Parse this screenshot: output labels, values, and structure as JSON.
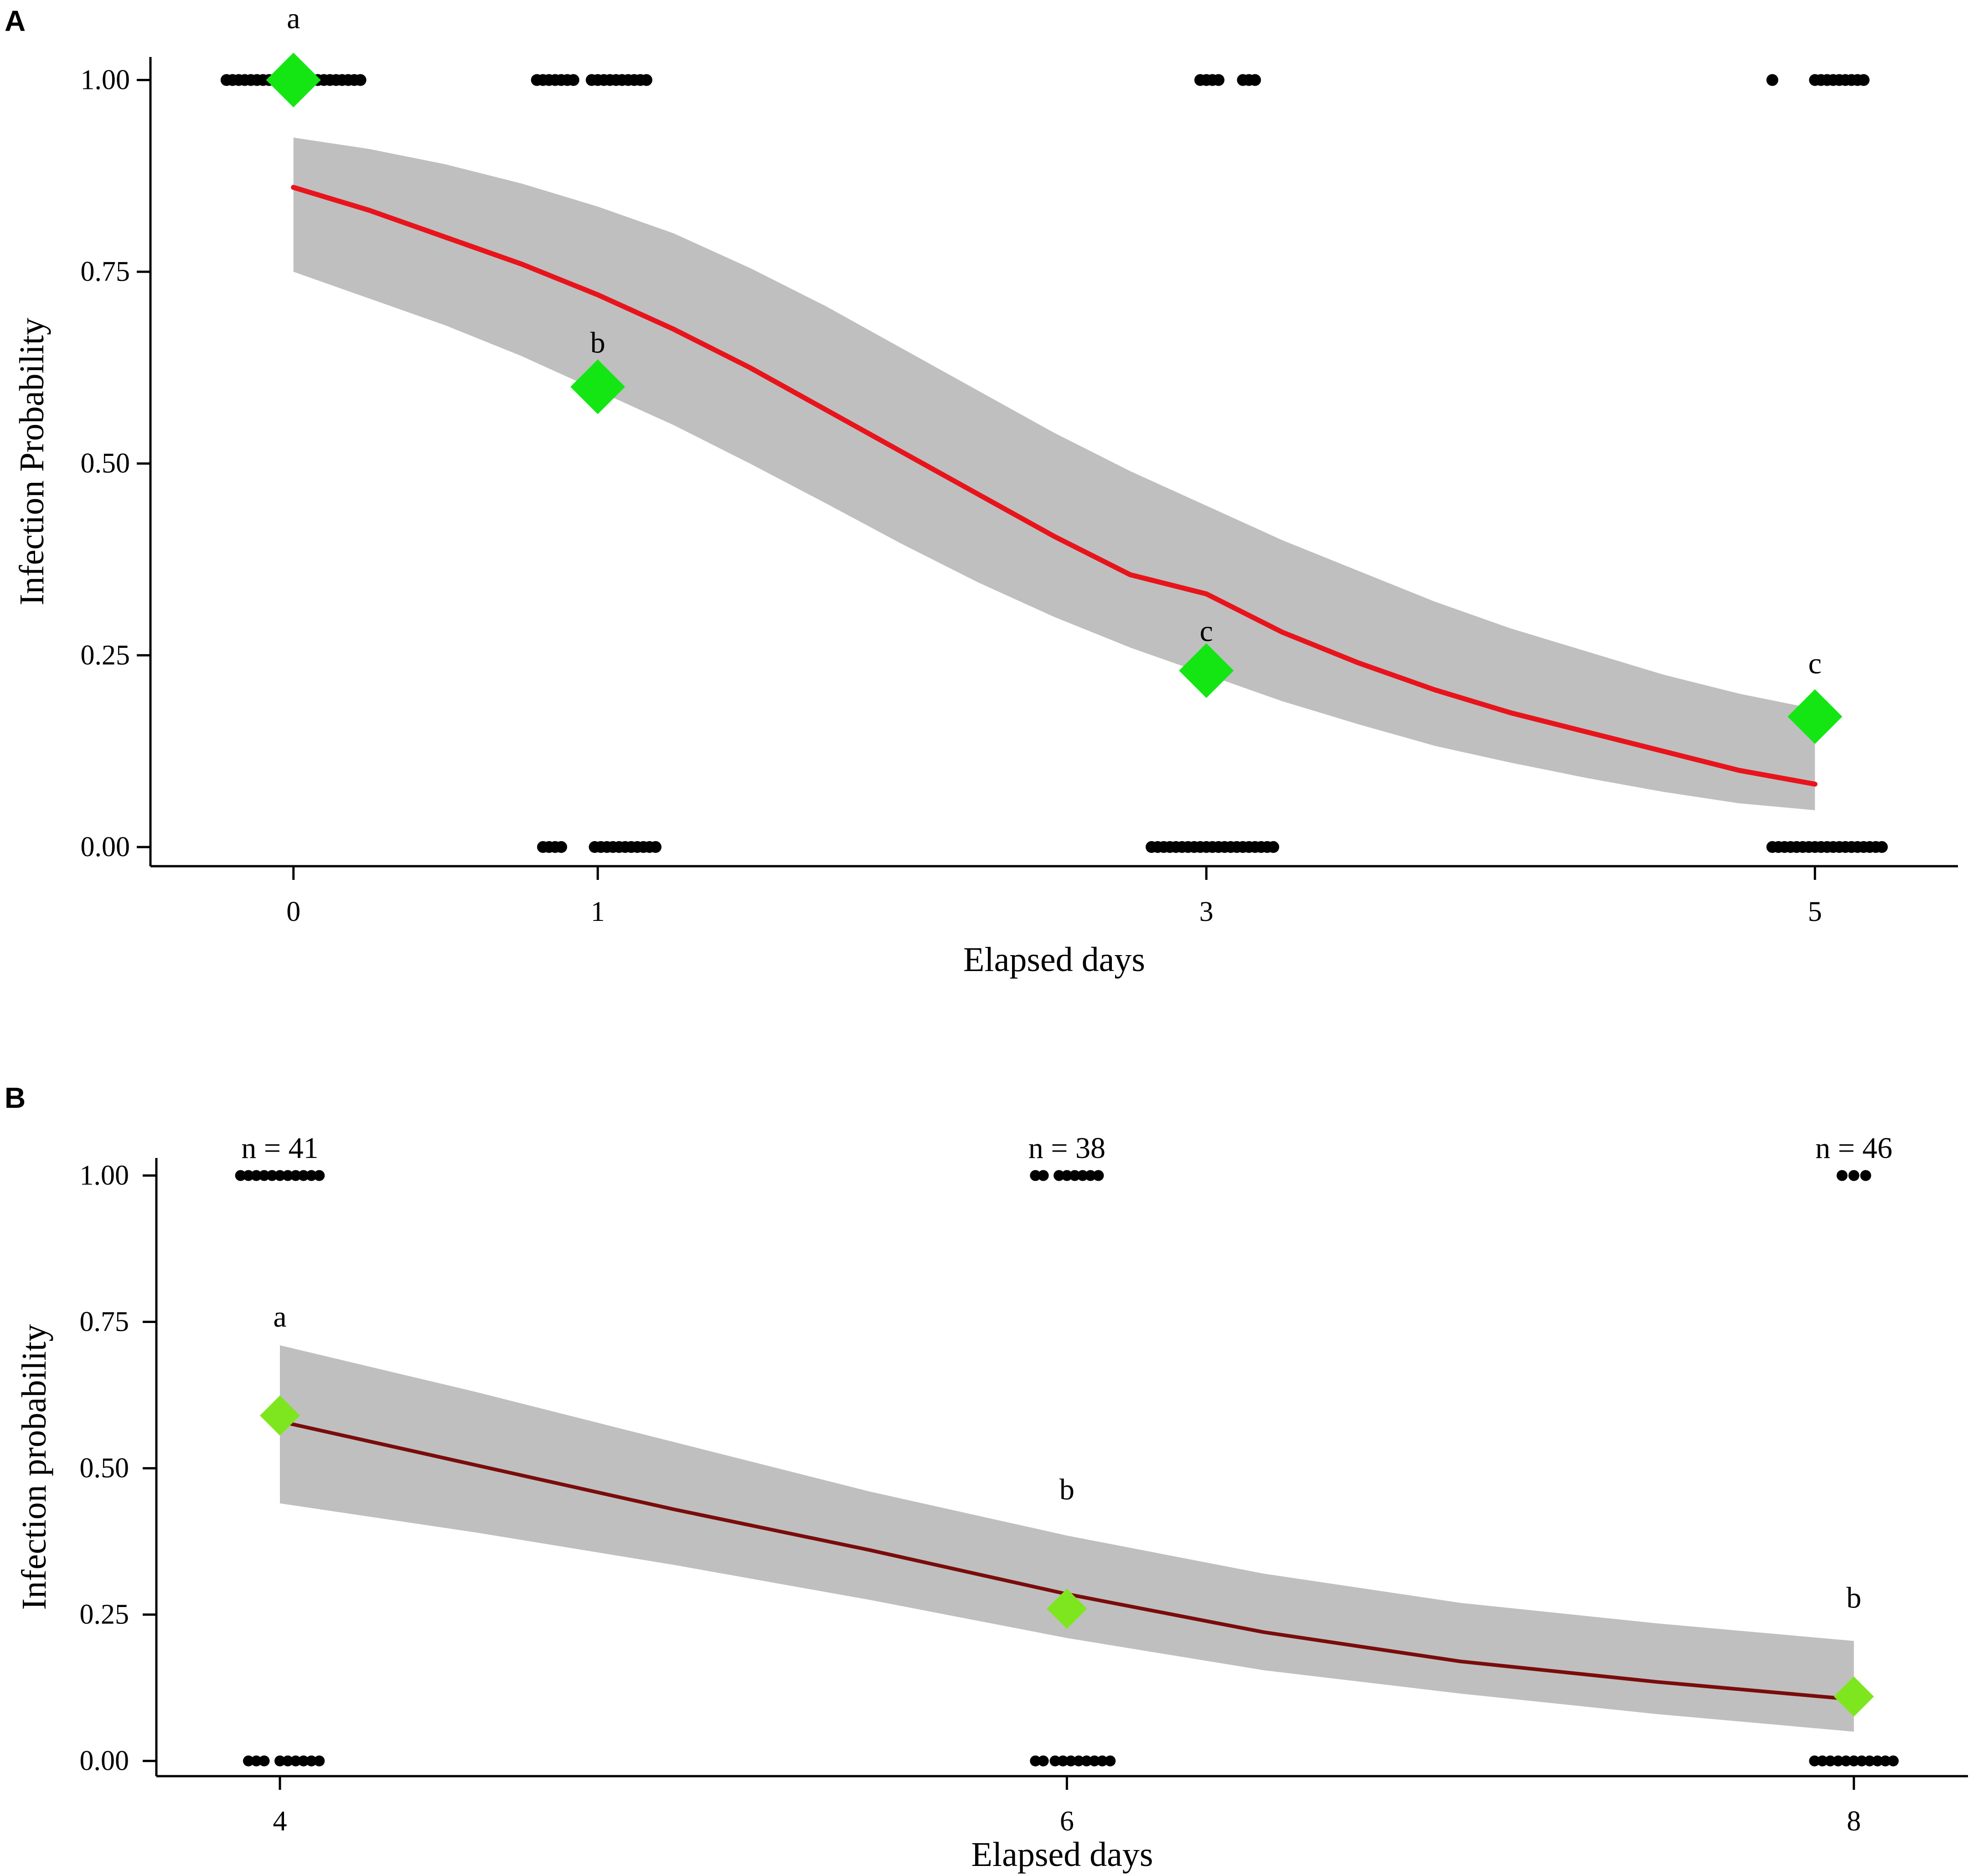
{
  "chart_data": [
    {
      "panel": "A",
      "type": "line",
      "title": "",
      "xlabel": "Elapsed days",
      "ylabel": "Infection Probability",
      "xlim": [
        -0.47,
        5.47
      ],
      "ylim": [
        -0.025,
        1.03
      ],
      "xticks": [
        0,
        1,
        3,
        5
      ],
      "xtick_labels": [
        "0",
        "1",
        "3",
        "5"
      ],
      "yticks": [
        0,
        0.25,
        0.5,
        0.75,
        1
      ],
      "ytick_labels": [
        "0.00",
        "0.25",
        "0.50",
        "0.75",
        "1.00"
      ],
      "grid": false,
      "fit_color": "#e8141c",
      "band_color": "#bfbfbf",
      "point_color": "#14e614",
      "fit": {
        "name": "Fitted infection probability",
        "x": [
          0,
          0.25,
          0.5,
          0.75,
          1,
          1.25,
          1.5,
          1.75,
          2,
          2.25,
          2.5,
          2.75,
          3,
          3.25,
          3.5,
          3.75,
          4,
          4.25,
          4.5,
          4.75,
          5
        ],
        "y": [
          0.86,
          0.83,
          0.795,
          0.76,
          0.72,
          0.675,
          0.625,
          0.57,
          0.515,
          0.46,
          0.405,
          0.355,
          0.33,
          0.28,
          0.24,
          0.205,
          0.175,
          0.15,
          0.125,
          0.1,
          0.082
        ],
        "lower": [
          0.75,
          0.715,
          0.68,
          0.64,
          0.595,
          0.55,
          0.5,
          0.448,
          0.395,
          0.345,
          0.3,
          0.26,
          0.225,
          0.19,
          0.16,
          0.132,
          0.11,
          0.09,
          0.072,
          0.057,
          0.048
        ],
        "upper": [
          0.925,
          0.91,
          0.89,
          0.865,
          0.835,
          0.8,
          0.755,
          0.705,
          0.65,
          0.595,
          0.54,
          0.49,
          0.445,
          0.4,
          0.36,
          0.32,
          0.285,
          0.255,
          0.225,
          0.2,
          0.18
        ]
      },
      "observed": {
        "name": "Observed proportion infected",
        "x": [
          0,
          1,
          3,
          5
        ],
        "y": [
          1.0,
          0.6,
          0.23,
          0.17
        ],
        "letters": [
          "a",
          "b",
          "c",
          "c"
        ]
      },
      "raw_points": [
        {
          "y": 1,
          "x": [
            -0.22,
            -0.2,
            -0.18,
            -0.16,
            -0.14,
            -0.12,
            -0.1,
            -0.08,
            -0.06,
            0.06,
            0.08,
            0.1,
            0.12,
            0.14,
            0.16,
            0.18,
            0.2,
            0.22
          ]
        },
        {
          "y": 1,
          "x": [
            0.8,
            0.82,
            0.84,
            0.86,
            0.88,
            0.9,
            0.92,
            0.98,
            1.0,
            1.02,
            1.04,
            1.06,
            1.08,
            1.1,
            1.12,
            1.14,
            1.16
          ]
        },
        {
          "y": 1,
          "x": [
            2.98,
            3.0,
            3.02,
            3.04,
            3.12,
            3.14,
            3.16
          ]
        },
        {
          "y": 1,
          "x": [
            4.86,
            5.0,
            5.02,
            5.04,
            5.06,
            5.08,
            5.1,
            5.12,
            5.14,
            5.16
          ]
        },
        {
          "y": 0,
          "x": [
            0.82,
            0.84,
            0.86,
            0.88,
            0.99,
            1.01,
            1.03,
            1.05,
            1.07,
            1.09,
            1.11,
            1.13,
            1.15,
            1.17,
            1.19
          ]
        },
        {
          "y": 0,
          "x": [
            2.82,
            2.84,
            2.86,
            2.88,
            2.9,
            2.92,
            2.94,
            2.96,
            2.98,
            3.0,
            3.02,
            3.04,
            3.06,
            3.08,
            3.1,
            3.12,
            3.14,
            3.16,
            3.18,
            3.2,
            3.22
          ]
        },
        {
          "y": 0,
          "x": [
            4.86,
            4.88,
            4.9,
            4.92,
            4.94,
            4.96,
            4.98,
            5.0,
            5.02,
            5.04,
            5.06,
            5.08,
            5.1,
            5.12,
            5.14,
            5.16,
            5.18,
            5.2,
            5.22
          ]
        }
      ]
    },
    {
      "panel": "B",
      "type": "line",
      "title": "",
      "xlabel": "Elapsed days",
      "ylabel": "Infection probability",
      "xlim": [
        3.686,
        8.29
      ],
      "ylim": [
        -0.026,
        1.03
      ],
      "xticks": [
        4,
        6,
        8
      ],
      "xtick_labels": [
        "4",
        "6",
        "8"
      ],
      "yticks": [
        0,
        0.25,
        0.5,
        0.75,
        1
      ],
      "ytick_labels": [
        "0.00",
        "0.25",
        "0.50",
        "0.75",
        "1.00"
      ],
      "grid": false,
      "fit_color": "#7a0c0c",
      "band_color": "#bfbfbf",
      "point_color": "#7ee61e",
      "fit": {
        "name": "Fitted infection probability",
        "x": [
          4,
          4.5,
          5,
          5.5,
          6,
          6.5,
          7,
          7.5,
          8
        ],
        "y": [
          0.58,
          0.505,
          0.43,
          0.36,
          0.285,
          0.22,
          0.17,
          0.135,
          0.105
        ],
        "lower": [
          0.44,
          0.39,
          0.335,
          0.275,
          0.21,
          0.155,
          0.115,
          0.08,
          0.05
        ],
        "upper": [
          0.71,
          0.63,
          0.545,
          0.46,
          0.385,
          0.32,
          0.27,
          0.235,
          0.205
        ]
      },
      "observed": {
        "name": "Observed proportion infected",
        "x": [
          4,
          6,
          8
        ],
        "y": [
          0.59,
          0.26,
          0.11
        ],
        "letters": [
          "a",
          "b",
          "b"
        ]
      },
      "sample_sizes": [
        "n = 41",
        "n = 38",
        "n = 46"
      ],
      "raw_points": [
        {
          "y": 1,
          "x": [
            3.9,
            3.92,
            3.94,
            3.96,
            3.98,
            4.0,
            4.02,
            4.04,
            4.06,
            4.08,
            4.1
          ]
        },
        {
          "y": 1,
          "x": [
            5.92,
            5.94,
            5.98,
            6.0,
            6.02,
            6.04,
            6.06,
            6.08
          ]
        },
        {
          "y": 1,
          "x": [
            7.97,
            8.0,
            8.03
          ]
        },
        {
          "y": 0,
          "x": [
            3.92,
            3.94,
            3.96,
            4.0,
            4.02,
            4.04,
            4.06,
            4.08,
            4.1
          ]
        },
        {
          "y": 0,
          "x": [
            5.92,
            5.94,
            5.97,
            5.99,
            6.01,
            6.03,
            6.05,
            6.07,
            6.09,
            6.11
          ]
        },
        {
          "y": 0,
          "x": [
            7.9,
            7.92,
            7.94,
            7.96,
            7.98,
            8.0,
            8.02,
            8.04,
            8.06,
            8.08,
            8.1
          ]
        }
      ]
    }
  ],
  "panels": {
    "a": {
      "label": "A"
    },
    "b": {
      "label": "B"
    }
  }
}
